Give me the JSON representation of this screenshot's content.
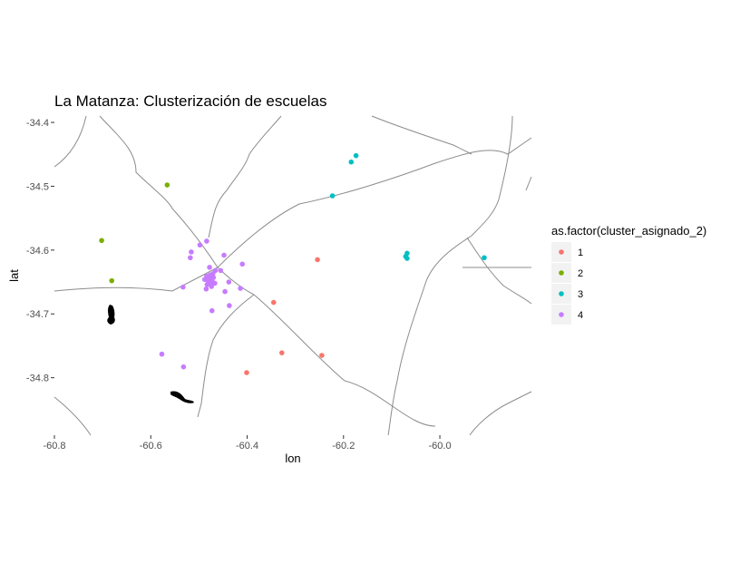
{
  "chart_data": {
    "type": "scatter",
    "title": "La Matanza: Clusterización de escuelas",
    "xlabel": "lon",
    "ylabel": "lat",
    "xlim": [
      -60.8,
      -59.81
    ],
    "ylim": [
      -34.89,
      -34.39
    ],
    "x_ticks": [
      {
        "value": -60.8,
        "label": "-60.8"
      },
      {
        "value": -60.6,
        "label": "-60.6"
      },
      {
        "value": -60.4,
        "label": "-60.4"
      },
      {
        "value": -60.2,
        "label": "-60.2"
      },
      {
        "value": -60.0,
        "label": "-60.0"
      }
    ],
    "y_ticks": [
      {
        "value": -34.4,
        "label": "-34.4"
      },
      {
        "value": -34.5,
        "label": "-34.5"
      },
      {
        "value": -34.6,
        "label": "-34.6"
      },
      {
        "value": -34.7,
        "label": "-34.7"
      },
      {
        "value": -34.8,
        "label": "-34.8"
      }
    ],
    "grid": false,
    "legend": {
      "title": "as.factor(cluster_asignado_2)",
      "position": "right"
    },
    "series": [
      {
        "name": "1",
        "color": "#F8766D",
        "points": [
          {
            "lon": -60.254,
            "lat": -34.615
          },
          {
            "lon": -60.345,
            "lat": -34.682
          },
          {
            "lon": -60.328,
            "lat": -34.761
          },
          {
            "lon": -60.245,
            "lat": -34.765
          },
          {
            "lon": -60.401,
            "lat": -34.792
          }
        ]
      },
      {
        "name": "2",
        "color": "#7CAE00",
        "points": [
          {
            "lon": -60.566,
            "lat": -34.498
          },
          {
            "lon": -60.702,
            "lat": -34.585
          },
          {
            "lon": -60.681,
            "lat": -34.648
          }
        ]
      },
      {
        "name": "3",
        "color": "#00BFC4",
        "points": [
          {
            "lon": -60.174,
            "lat": -34.452
          },
          {
            "lon": -60.184,
            "lat": -34.462
          },
          {
            "lon": -60.223,
            "lat": -34.515
          },
          {
            "lon": -60.068,
            "lat": -34.605
          },
          {
            "lon": -60.071,
            "lat": -34.61
          },
          {
            "lon": -60.068,
            "lat": -34.613
          },
          {
            "lon": -59.908,
            "lat": -34.612
          }
        ]
      },
      {
        "name": "4",
        "color": "#C77CFF",
        "points": [
          {
            "lon": -60.484,
            "lat": -34.586
          },
          {
            "lon": -60.498,
            "lat": -34.592
          },
          {
            "lon": -60.516,
            "lat": -34.603
          },
          {
            "lon": -60.518,
            "lat": -34.612
          },
          {
            "lon": -60.448,
            "lat": -34.608
          },
          {
            "lon": -60.41,
            "lat": -34.622
          },
          {
            "lon": -60.478,
            "lat": -34.627
          },
          {
            "lon": -60.466,
            "lat": -34.632
          },
          {
            "lon": -60.455,
            "lat": -34.632
          },
          {
            "lon": -60.471,
            "lat": -34.637
          },
          {
            "lon": -60.477,
            "lat": -34.639
          },
          {
            "lon": -60.484,
            "lat": -34.641
          },
          {
            "lon": -60.47,
            "lat": -34.643
          },
          {
            "lon": -60.476,
            "lat": -34.645
          },
          {
            "lon": -60.488,
            "lat": -34.646
          },
          {
            "lon": -60.481,
            "lat": -34.648
          },
          {
            "lon": -60.472,
            "lat": -34.65
          },
          {
            "lon": -60.478,
            "lat": -34.651
          },
          {
            "lon": -60.467,
            "lat": -34.652
          },
          {
            "lon": -60.483,
            "lat": -34.654
          },
          {
            "lon": -60.438,
            "lat": -34.65
          },
          {
            "lon": -60.474,
            "lat": -34.657
          },
          {
            "lon": -60.485,
            "lat": -34.661
          },
          {
            "lon": -60.414,
            "lat": -34.66
          },
          {
            "lon": -60.446,
            "lat": -34.665
          },
          {
            "lon": -60.533,
            "lat": -34.658
          },
          {
            "lon": -60.437,
            "lat": -34.687
          },
          {
            "lon": -60.473,
            "lat": -34.695
          },
          {
            "lon": -60.577,
            "lat": -34.763
          },
          {
            "lon": -60.532,
            "lat": -34.783
          }
        ]
      }
    ]
  }
}
